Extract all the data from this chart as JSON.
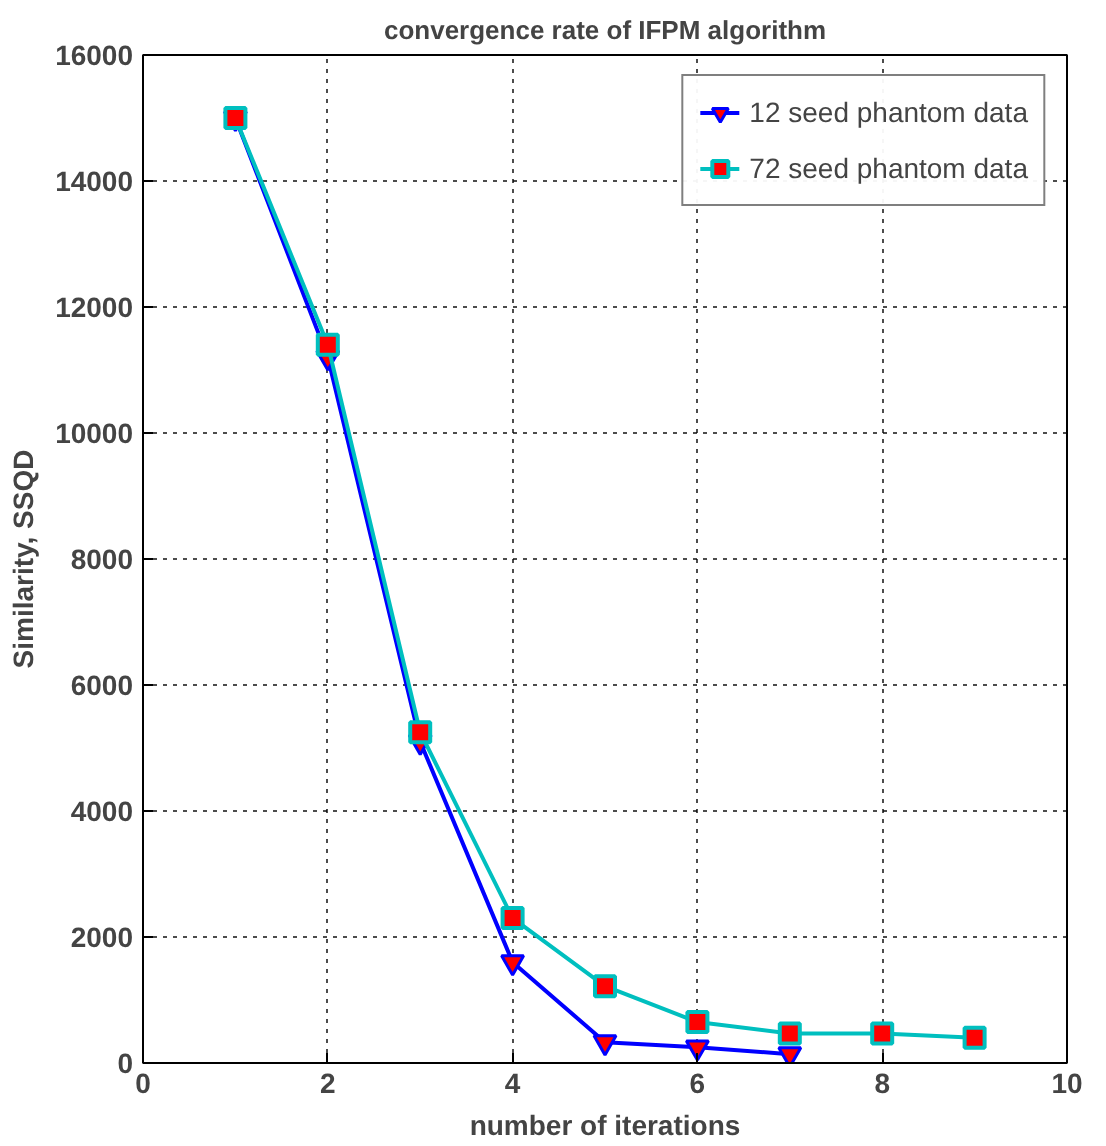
{
  "chart_data": {
    "type": "line",
    "title": "convergence rate of IFPM algorithm",
    "xlabel": "number of iterations",
    "ylabel": "Similarity, SSQD",
    "x": [
      1,
      2,
      3,
      4,
      5,
      6,
      7,
      8,
      9
    ],
    "series": [
      {
        "name": "12 seed phantom data",
        "color": "#0000ff",
        "marker": "triangle",
        "values": [
          15000,
          11200,
          5100,
          1600,
          330,
          250,
          140,
          null,
          null
        ]
      },
      {
        "name": "72 seed phantom data",
        "color": "#00bfbf",
        "marker": "square",
        "values": [
          15000,
          11400,
          5250,
          2300,
          1220,
          650,
          470,
          470,
          400
        ]
      }
    ],
    "xlim": [
      0,
      10
    ],
    "xticks": [
      0,
      2,
      4,
      6,
      8,
      10
    ],
    "ylim": [
      0,
      16000
    ],
    "yticks": [
      0,
      2000,
      4000,
      6000,
      8000,
      10000,
      12000,
      14000,
      16000
    ],
    "grid": true,
    "legend": "top right",
    "line_style": "solid"
  }
}
